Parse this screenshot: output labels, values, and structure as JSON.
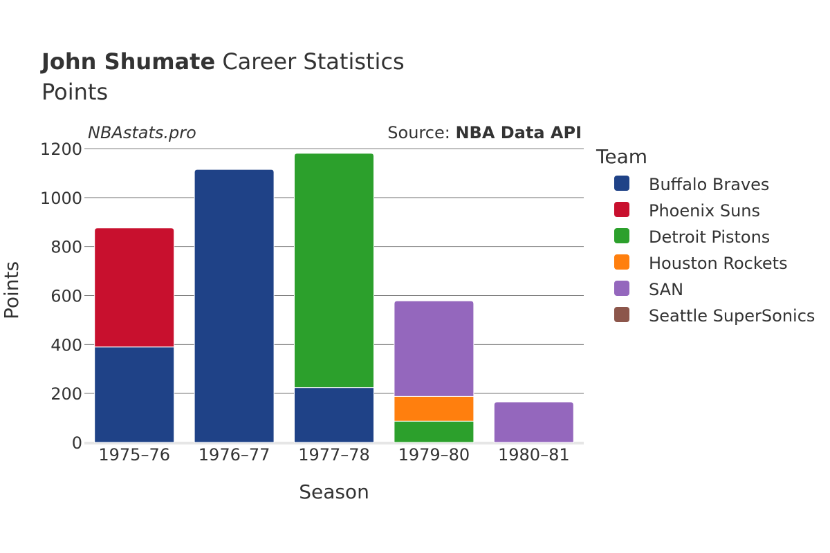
{
  "chart_data": {
    "type": "bar",
    "stacked": true,
    "title_bold": "John Shumate",
    "title_rest": " Career Statistics",
    "subtitle": "Points",
    "watermark": "NBAstats.pro",
    "source_prefix": "Source: ",
    "source_name": "NBA Data API",
    "xlabel": "Season",
    "ylabel": "Points",
    "ylim": [
      0,
      1200
    ],
    "yticks": [
      0,
      200,
      400,
      600,
      800,
      1000,
      1200
    ],
    "grid": true,
    "legend_title": "Team",
    "legend_position": "right",
    "categories": [
      "1975–76",
      "1976–77",
      "1977–78",
      "1979–80",
      "1980–81"
    ],
    "series": [
      {
        "name": "Buffalo Braves",
        "color": "#1f4287",
        "values": [
          390,
          1115,
          224,
          0,
          0
        ]
      },
      {
        "name": "Phoenix Suns",
        "color": "#c8102e",
        "values": [
          486,
          0,
          0,
          0,
          0
        ]
      },
      {
        "name": "Detroit Pistons",
        "color": "#2ca02c",
        "values": [
          0,
          0,
          957,
          87,
          0
        ]
      },
      {
        "name": "Houston Rockets",
        "color": "#ff7f0e",
        "values": [
          0,
          0,
          0,
          101,
          0
        ]
      },
      {
        "name": "SAN",
        "color": "#9467bd",
        "values": [
          0,
          0,
          0,
          390,
          165
        ]
      },
      {
        "name": "Seattle SuperSonics",
        "color": "#8c564b",
        "values": [
          0,
          0,
          0,
          0,
          0
        ]
      }
    ]
  }
}
